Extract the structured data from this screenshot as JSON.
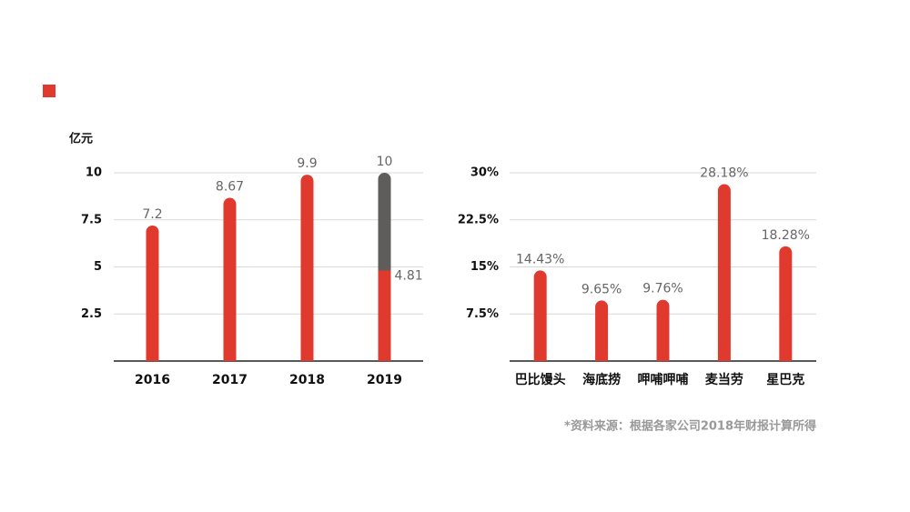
{
  "chart_data": [
    {
      "type": "bar",
      "y_label": "亿元",
      "categories": [
        "2016",
        "2017",
        "2018",
        "2019"
      ],
      "series": [
        {
          "color": "#e03a2f",
          "values": [
            7.2,
            8.67,
            9.9,
            4.81
          ]
        },
        {
          "color": "#5f5c5c",
          "values": [
            null,
            null,
            null,
            10
          ]
        }
      ],
      "ylim": [
        0,
        10
      ],
      "yticks": [
        2.5,
        5,
        7.5,
        10
      ],
      "grid": true
    },
    {
      "type": "bar",
      "categories": [
        "巴比馒头",
        "海底捞",
        "呷哺呷哺",
        "麦当劳",
        "星巴克"
      ],
      "values": [
        14.43,
        9.65,
        9.76,
        28.18,
        18.28
      ],
      "value_labels": [
        "14.43%",
        "9.65%",
        "9.76%",
        "28.18%",
        "18.28%"
      ],
      "color": "#e03a2f",
      "ylim": [
        0,
        30
      ],
      "yticks": [
        {
          "value": 7.5,
          "label": "7.5%"
        },
        {
          "value": 15,
          "label": "15%"
        },
        {
          "value": 22.5,
          "label": "22.5%"
        },
        {
          "value": 30,
          "label": "30%"
        }
      ],
      "grid": true
    }
  ],
  "source": "*资料来源：根据各家公司2018年财报计算所得"
}
